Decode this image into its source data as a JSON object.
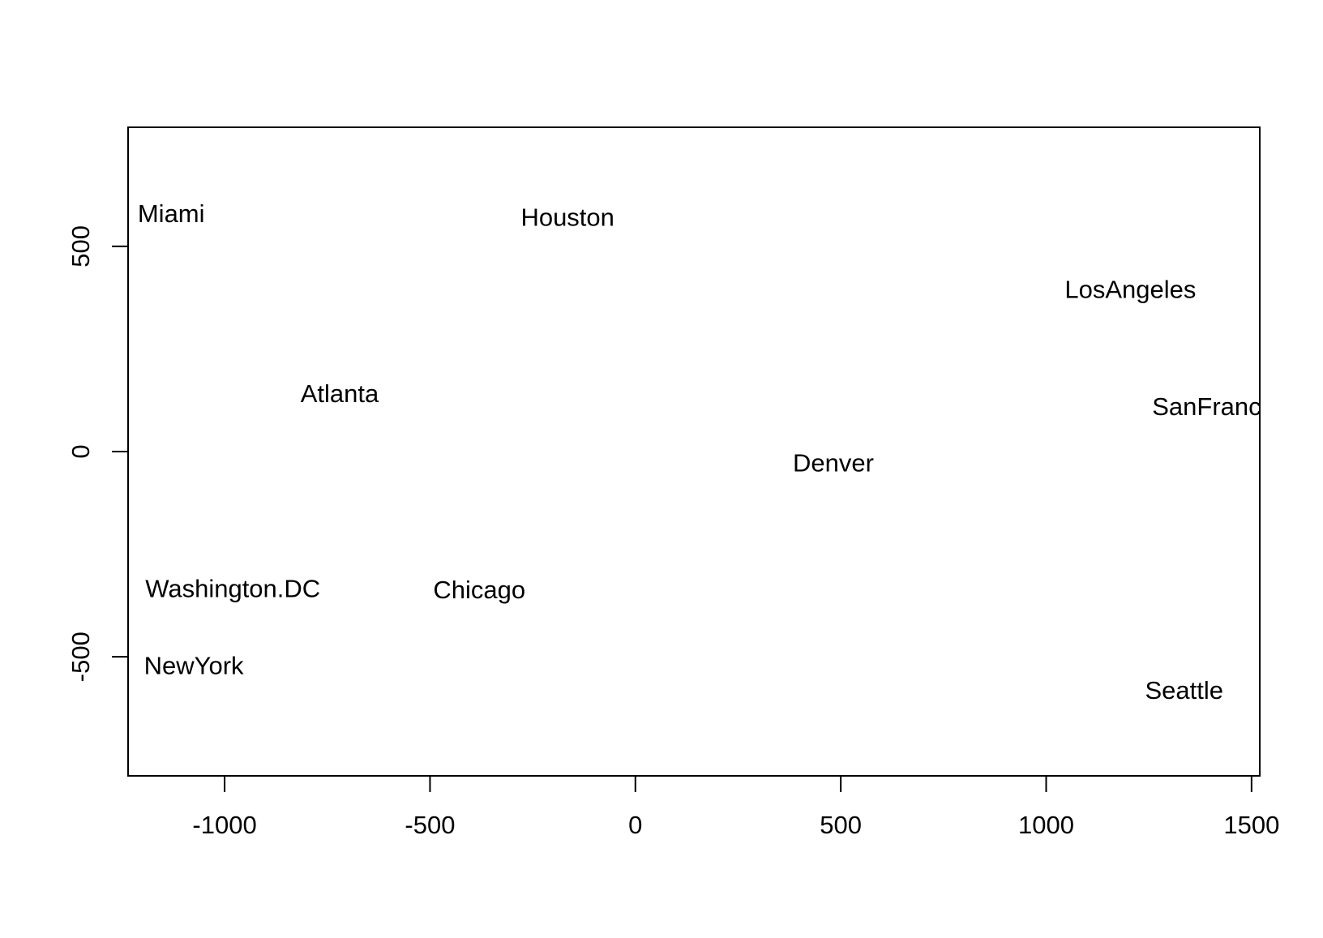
{
  "chart_data": {
    "type": "scatter",
    "title": "",
    "xlabel": "",
    "ylabel": "",
    "xlim": [
      -1235,
      1520
    ],
    "ylim": [
      -790,
      790
    ],
    "x_ticks": [
      -1000,
      -500,
      0,
      500,
      1000,
      1500
    ],
    "x_tick_labels": [
      "-1000",
      "-500",
      "0",
      "500",
      "1000",
      "1500"
    ],
    "y_ticks": [
      -500,
      0,
      500
    ],
    "y_tick_labels": [
      "-500",
      "0",
      "500"
    ],
    "grid": false,
    "legend": "none",
    "marker": "text-label",
    "points": [
      {
        "label": "Miami",
        "x": -1130,
        "y": 580
      },
      {
        "label": "Houston",
        "x": -165,
        "y": 571
      },
      {
        "label": "LosAngeles",
        "x": 1205,
        "y": 395
      },
      {
        "label": "Atlanta",
        "x": -720,
        "y": 141
      },
      {
        "label": "SanFrancisco",
        "x": 1445,
        "y": 110
      },
      {
        "label": "Denver",
        "x": 482,
        "y": -28
      },
      {
        "label": "Washington.DC",
        "x": -980,
        "y": -334
      },
      {
        "label": "Chicago",
        "x": -380,
        "y": -337
      },
      {
        "label": "NewYork",
        "x": -1075,
        "y": -521
      },
      {
        "label": "Seattle",
        "x": 1336,
        "y": -582
      }
    ]
  }
}
